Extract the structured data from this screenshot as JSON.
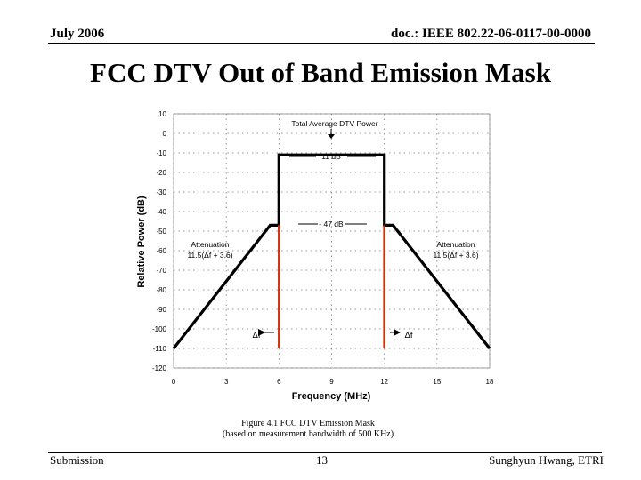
{
  "header": {
    "left": "July 2006",
    "right": "doc.: IEEE 802.22-06-0117-00-0000"
  },
  "slide": {
    "title": "FCC DTV Out of Band Emission Mask"
  },
  "footer": {
    "left": "Submission",
    "page": "13",
    "right": "Sunghyun Hwang, ETRI"
  },
  "chart_data": {
    "type": "line",
    "xlabel": "Frequency  (MHz)",
    "ylabel": "Relative Power  (dB)",
    "xlim": [
      0,
      18
    ],
    "ylim": [
      -120,
      10
    ],
    "x_ticks": [
      0,
      3,
      6,
      9,
      12,
      15,
      18
    ],
    "y_ticks": [
      10,
      0,
      -10,
      -20,
      -30,
      -40,
      -50,
      -60,
      -70,
      -80,
      -90,
      -100,
      -110,
      -120
    ],
    "grid": "dotted",
    "series": [
      {
        "name": "Emission mask",
        "color": "#000000",
        "x": [
          0,
          5.5,
          6,
          6,
          12,
          12,
          12.5,
          18
        ],
        "y": [
          -110,
          -47,
          -47,
          -11,
          -11,
          -47,
          -47,
          -110
        ]
      }
    ],
    "markers": [
      {
        "name": "Channel edge 6 MHz",
        "x": 6,
        "y_from": -47,
        "y_to": -110,
        "color": "#cc3311"
      },
      {
        "name": "Channel edge 12 MHz",
        "x": 12,
        "y_from": -47,
        "y_to": -110,
        "color": "#cc3311"
      }
    ],
    "annotations": {
      "total_power": "Total Average DTV  Power",
      "in_band": "11 dB",
      "edge": "- 47 dB",
      "atten_label": "Attenuation",
      "atten_formula": "11.5(Δf + 3.6)",
      "delta_f": "Δf"
    },
    "caption_line1": "Figure 4.1 FCC DTV Emission Mask",
    "caption_line2": "(based on measurement bandwidth of 500 KHz)"
  }
}
